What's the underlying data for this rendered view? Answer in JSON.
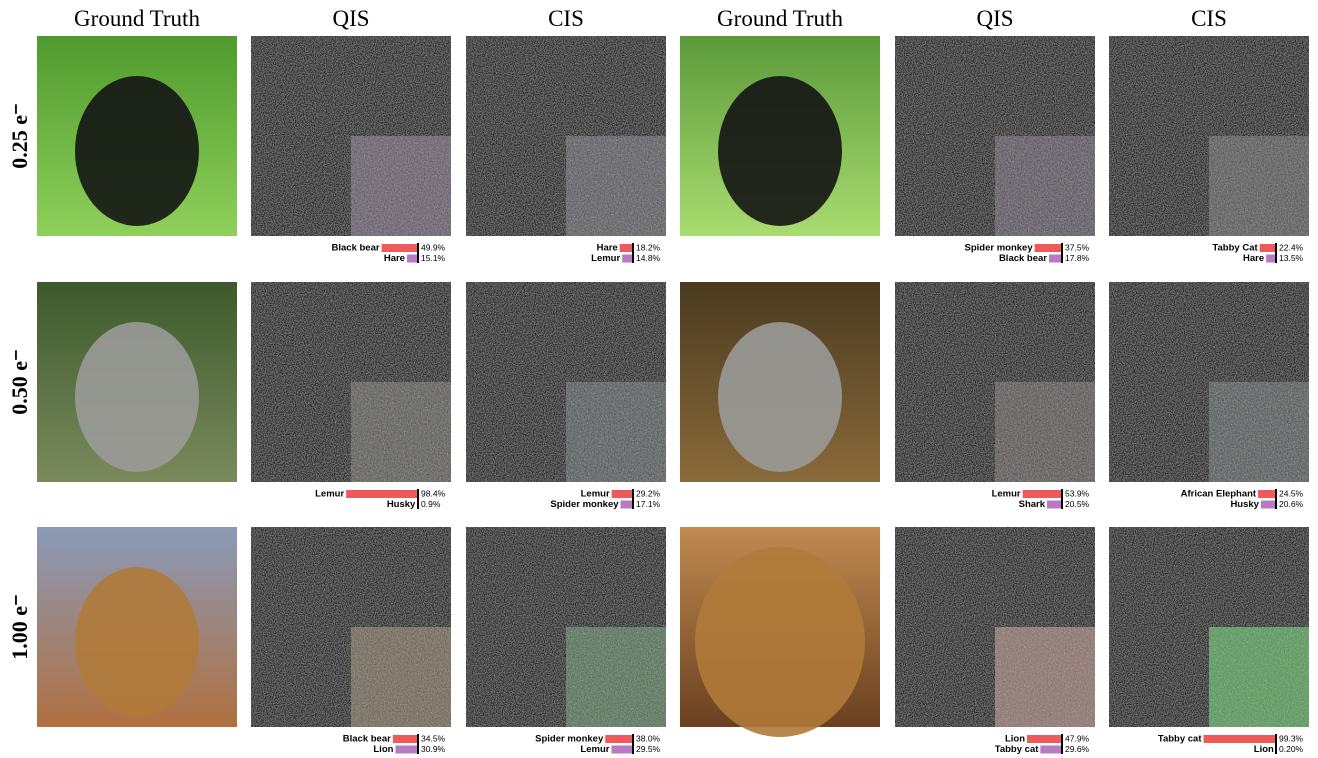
{
  "columns": [
    "Ground Truth",
    "QIS",
    "CIS",
    "Ground Truth",
    "QIS",
    "CIS"
  ],
  "rows": [
    {
      "label": "0.25 e⁻",
      "panels": [
        [
          {
            "name": "Black bear",
            "value": 49.9,
            "value_label": "49.9%"
          },
          {
            "name": "Hare",
            "value": 15.1,
            "value_label": "15.1%"
          }
        ],
        [
          {
            "name": "Hare",
            "value": 18.2,
            "value_label": "18.2%"
          },
          {
            "name": "Lemur",
            "value": 14.8,
            "value_label": "14.8%"
          }
        ],
        [
          {
            "name": "Spider monkey",
            "value": 37.5,
            "value_label": "37.5%"
          },
          {
            "name": "Black bear",
            "value": 17.8,
            "value_label": "17.8%"
          }
        ],
        [
          {
            "name": "Tabby Cat",
            "value": 22.4,
            "value_label": "22.4%"
          },
          {
            "name": "Hare",
            "value": 13.5,
            "value_label": "13.5%"
          }
        ]
      ]
    },
    {
      "label": "0.50 e⁻",
      "panels": [
        [
          {
            "name": "Lemur",
            "value": 98.4,
            "value_label": "98.4%"
          },
          {
            "name": "Husky",
            "value": 0.9,
            "value_label": "0.9%"
          }
        ],
        [
          {
            "name": "Lemur",
            "value": 29.2,
            "value_label": "29.2%"
          },
          {
            "name": "Spider monkey",
            "value": 17.1,
            "value_label": "17.1%"
          }
        ],
        [
          {
            "name": "Lemur",
            "value": 53.9,
            "value_label": "53.9%"
          },
          {
            "name": "Shark",
            "value": 20.5,
            "value_label": "20.5%"
          }
        ],
        [
          {
            "name": "African Elephant",
            "value": 24.5,
            "value_label": "24.5%"
          },
          {
            "name": "Husky",
            "value": 20.6,
            "value_label": "20.6%"
          }
        ]
      ]
    },
    {
      "label": "1.00 e⁻",
      "panels": [
        [
          {
            "name": "Black bear",
            "value": 34.5,
            "value_label": "34.5%"
          },
          {
            "name": "Lion",
            "value": 30.9,
            "value_label": "30.9%"
          }
        ],
        [
          {
            "name": "Spider monkey",
            "value": 38.0,
            "value_label": "38.0%"
          },
          {
            "name": "Lemur",
            "value": 29.5,
            "value_label": "29.5%"
          }
        ],
        [
          {
            "name": "Lion",
            "value": 47.9,
            "value_label": "47.9%"
          },
          {
            "name": "Tabby cat",
            "value": 29.6,
            "value_label": "29.6%"
          }
        ],
        [
          {
            "name": "Tabby cat",
            "value": 99.3,
            "value_label": "99.3%"
          },
          {
            "name": "Lion",
            "value": 0.2,
            "value_label": "0.20%"
          }
        ]
      ]
    }
  ]
}
